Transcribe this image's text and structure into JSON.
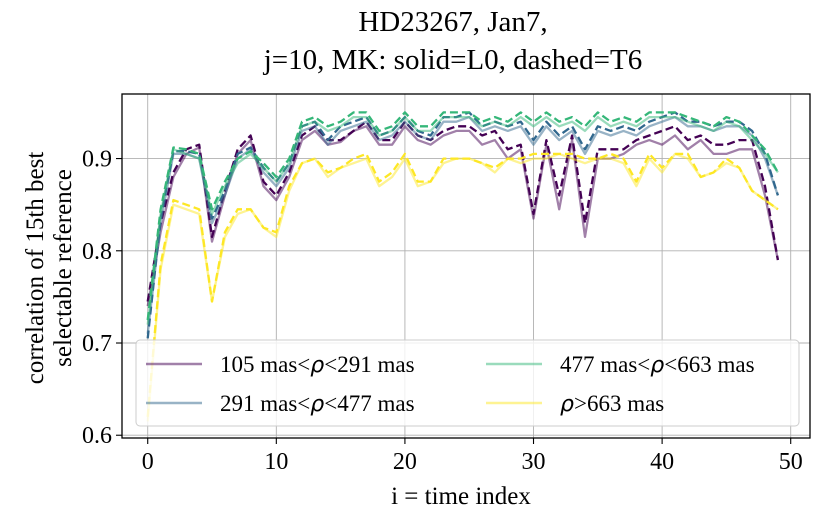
{
  "chart_data": {
    "type": "line",
    "title": [
      "HD23267, Jan7,",
      "j=10, MK: solid=L0, dashed=T6"
    ],
    "xlabel": "i = time index",
    "ylabel": [
      "correlation of 15th best",
      "selectable reference"
    ],
    "xlim": [
      -2,
      51.5
    ],
    "ylim": [
      0.597,
      0.97
    ],
    "xticks": [
      0,
      10,
      20,
      30,
      40,
      50
    ],
    "yticks": [
      0.6,
      0.7,
      0.8,
      0.9
    ],
    "xtick_labels": [
      "0",
      "10",
      "20",
      "30",
      "40",
      "50"
    ],
    "ytick_labels": [
      "0.6",
      "0.7",
      "0.8",
      "0.9"
    ],
    "grid": true,
    "legend_position": "lower center, 2 columns",
    "legend": [
      {
        "label": "105 mas<ρ<291 mas",
        "color": "#440154"
      },
      {
        "label": "291 mas<ρ<477 mas",
        "color": "#31688e"
      },
      {
        "label": "477 mas<ρ<663 mas",
        "color": "#35b779"
      },
      {
        "label": "ρ>663 mas",
        "color": "#fde725"
      }
    ],
    "x": [
      0,
      1,
      2,
      3,
      4,
      5,
      6,
      7,
      8,
      9,
      10,
      11,
      12,
      13,
      14,
      15,
      16,
      17,
      18,
      19,
      20,
      21,
      22,
      23,
      24,
      25,
      26,
      27,
      28,
      29,
      30,
      31,
      32,
      33,
      34,
      35,
      36,
      37,
      38,
      39,
      40,
      41,
      42,
      43,
      44,
      45,
      46,
      47,
      48,
      49
    ],
    "series": [
      {
        "name": "105 mas<ρ<291 mas",
        "style": "solid",
        "color": "#440154",
        "values": [
          0.74,
          0.82,
          0.88,
          0.905,
          0.912,
          0.81,
          0.86,
          0.905,
          0.92,
          0.87,
          0.855,
          0.88,
          0.92,
          0.93,
          0.915,
          0.918,
          0.93,
          0.935,
          0.915,
          0.915,
          0.935,
          0.92,
          0.915,
          0.925,
          0.93,
          0.93,
          0.915,
          0.92,
          0.9,
          0.91,
          0.835,
          0.915,
          0.845,
          0.92,
          0.815,
          0.9,
          0.9,
          0.905,
          0.915,
          0.92,
          0.915,
          0.925,
          0.91,
          0.92,
          0.905,
          0.905,
          0.91,
          0.91,
          0.86,
          0.79
        ]
      },
      {
        "name": "105 mas<ρ<291 mas",
        "style": "dashed",
        "color": "#440154",
        "values": [
          0.745,
          0.83,
          0.885,
          0.91,
          0.915,
          0.815,
          0.865,
          0.91,
          0.925,
          0.875,
          0.86,
          0.885,
          0.925,
          0.935,
          0.92,
          0.92,
          0.93,
          0.94,
          0.92,
          0.92,
          0.94,
          0.925,
          0.92,
          0.93,
          0.935,
          0.935,
          0.925,
          0.93,
          0.91,
          0.915,
          0.84,
          0.92,
          0.86,
          0.925,
          0.83,
          0.91,
          0.91,
          0.91,
          0.92,
          0.925,
          0.93,
          0.935,
          0.92,
          0.925,
          0.915,
          0.915,
          0.92,
          0.92,
          0.87,
          0.79
        ]
      },
      {
        "name": "291 mas<ρ<477 mas",
        "style": "solid",
        "color": "#31688e",
        "values": [
          0.71,
          0.83,
          0.905,
          0.905,
          0.9,
          0.83,
          0.86,
          0.9,
          0.91,
          0.885,
          0.87,
          0.89,
          0.93,
          0.935,
          0.915,
          0.93,
          0.935,
          0.94,
          0.92,
          0.925,
          0.94,
          0.925,
          0.92,
          0.94,
          0.94,
          0.945,
          0.93,
          0.935,
          0.93,
          0.935,
          0.915,
          0.935,
          0.92,
          0.93,
          0.905,
          0.93,
          0.925,
          0.93,
          0.925,
          0.935,
          0.94,
          0.945,
          0.935,
          0.935,
          0.93,
          0.935,
          0.935,
          0.925,
          0.9,
          0.86
        ]
      },
      {
        "name": "291 mas<ρ<477 mas",
        "style": "dashed",
        "color": "#31688e",
        "values": [
          0.705,
          0.835,
          0.908,
          0.908,
          0.905,
          0.835,
          0.865,
          0.905,
          0.912,
          0.89,
          0.875,
          0.895,
          0.935,
          0.94,
          0.92,
          0.935,
          0.94,
          0.945,
          0.925,
          0.93,
          0.945,
          0.93,
          0.925,
          0.945,
          0.945,
          0.95,
          0.935,
          0.94,
          0.935,
          0.94,
          0.92,
          0.94,
          0.925,
          0.935,
          0.91,
          0.935,
          0.93,
          0.935,
          0.93,
          0.94,
          0.945,
          0.95,
          0.94,
          0.94,
          0.935,
          0.94,
          0.94,
          0.93,
          0.905,
          0.86
        ]
      },
      {
        "name": "477 mas<ρ<663 mas",
        "style": "solid",
        "color": "#35b779",
        "values": [
          0.72,
          0.84,
          0.91,
          0.905,
          0.9,
          0.84,
          0.87,
          0.895,
          0.905,
          0.89,
          0.875,
          0.895,
          0.935,
          0.94,
          0.93,
          0.935,
          0.945,
          0.945,
          0.925,
          0.93,
          0.945,
          0.93,
          0.93,
          0.945,
          0.945,
          0.945,
          0.935,
          0.94,
          0.935,
          0.945,
          0.935,
          0.945,
          0.935,
          0.94,
          0.93,
          0.945,
          0.935,
          0.94,
          0.935,
          0.945,
          0.945,
          0.945,
          0.94,
          0.935,
          0.93,
          0.94,
          0.935,
          0.92,
          0.905,
          0.885
        ]
      },
      {
        "name": "477 mas<ρ<663 mas",
        "style": "dashed",
        "color": "#35b779",
        "values": [
          0.725,
          0.845,
          0.912,
          0.91,
          0.905,
          0.845,
          0.875,
          0.9,
          0.908,
          0.895,
          0.88,
          0.9,
          0.94,
          0.945,
          0.935,
          0.94,
          0.95,
          0.95,
          0.93,
          0.935,
          0.95,
          0.935,
          0.935,
          0.95,
          0.95,
          0.95,
          0.94,
          0.945,
          0.94,
          0.95,
          0.94,
          0.95,
          0.94,
          0.945,
          0.935,
          0.95,
          0.94,
          0.945,
          0.94,
          0.95,
          0.95,
          0.95,
          0.945,
          0.94,
          0.935,
          0.945,
          0.94,
          0.925,
          0.91,
          0.885
        ]
      },
      {
        "name": "ρ>663 mas",
        "style": "solid",
        "color": "#fde725",
        "values": [
          0.615,
          0.78,
          0.85,
          0.845,
          0.84,
          0.745,
          0.815,
          0.84,
          0.845,
          0.825,
          0.815,
          0.865,
          0.895,
          0.9,
          0.88,
          0.89,
          0.895,
          0.9,
          0.87,
          0.88,
          0.9,
          0.87,
          0.875,
          0.895,
          0.9,
          0.9,
          0.895,
          0.885,
          0.9,
          0.895,
          0.9,
          0.9,
          0.905,
          0.9,
          0.895,
          0.9,
          0.9,
          0.895,
          0.87,
          0.9,
          0.885,
          0.905,
          0.9,
          0.88,
          0.885,
          0.895,
          0.89,
          0.865,
          0.855,
          0.845
        ]
      },
      {
        "name": "ρ>663 mas",
        "style": "dashed",
        "color": "#fde725",
        "values": [
          0.62,
          0.785,
          0.855,
          0.85,
          0.845,
          0.745,
          0.82,
          0.845,
          0.845,
          0.825,
          0.82,
          0.87,
          0.895,
          0.9,
          0.885,
          0.89,
          0.9,
          0.905,
          0.875,
          0.885,
          0.905,
          0.875,
          0.875,
          0.9,
          0.9,
          0.9,
          0.895,
          0.89,
          0.9,
          0.9,
          0.905,
          0.905,
          0.905,
          0.905,
          0.9,
          0.9,
          0.905,
          0.9,
          0.875,
          0.905,
          0.89,
          0.905,
          0.905,
          0.88,
          0.885,
          0.9,
          0.89,
          0.865,
          0.855,
          0.845
        ]
      }
    ]
  }
}
